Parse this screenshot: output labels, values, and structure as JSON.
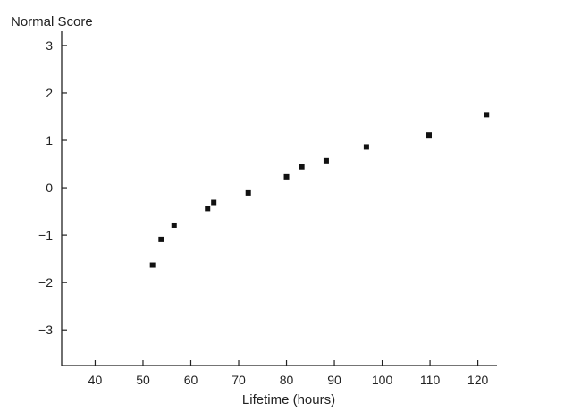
{
  "chart_data": {
    "type": "scatter",
    "title": "",
    "xlabel": "Lifetime (hours)",
    "ylabel": "Normal Score",
    "xlim": [
      33,
      124
    ],
    "ylim": [
      -3.75,
      3.3
    ],
    "xticks": [
      40,
      50,
      60,
      70,
      80,
      90,
      100,
      110,
      120
    ],
    "xtick_labels": [
      "40",
      "50",
      "60",
      "70",
      "80",
      "90",
      "100",
      "110",
      "120"
    ],
    "yticks": [
      3,
      2,
      1,
      0,
      -1,
      -2,
      -3
    ],
    "ytick_labels": [
      "3",
      "2",
      "1",
      "0",
      "−1",
      "−2",
      "−3"
    ],
    "grid": false,
    "marker": "square",
    "marker_color": "#111111",
    "points": [
      {
        "x": 52.0,
        "y": -1.63
      },
      {
        "x": 53.8,
        "y": -1.09
      },
      {
        "x": 56.5,
        "y": -0.79
      },
      {
        "x": 63.5,
        "y": -0.44
      },
      {
        "x": 64.8,
        "y": -0.31
      },
      {
        "x": 72.0,
        "y": -0.11
      },
      {
        "x": 80.0,
        "y": 0.23
      },
      {
        "x": 83.2,
        "y": 0.44
      },
      {
        "x": 88.3,
        "y": 0.57
      },
      {
        "x": 96.7,
        "y": 0.86
      },
      {
        "x": 109.8,
        "y": 1.11
      },
      {
        "x": 121.8,
        "y": 1.54
      }
    ]
  }
}
